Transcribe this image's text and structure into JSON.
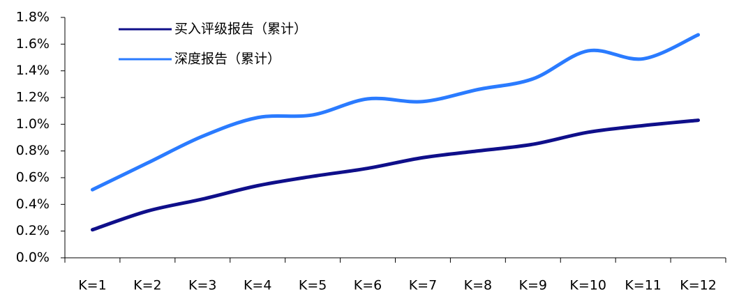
{
  "chart_data": {
    "type": "line",
    "categories": [
      "K=1",
      "K=2",
      "K=3",
      "K=4",
      "K=5",
      "K=6",
      "K=7",
      "K=8",
      "K=9",
      "K=10",
      "K=11",
      "K=12"
    ],
    "series": [
      {
        "name": "买入评级报告（累计）",
        "color": "#0f0f8a",
        "values": [
          0.21,
          0.35,
          0.44,
          0.54,
          0.61,
          0.67,
          0.75,
          0.8,
          0.85,
          0.94,
          0.99,
          1.03
        ]
      },
      {
        "name": "深度报告（累计）",
        "color": "#2a7bff",
        "values": [
          0.51,
          0.71,
          0.91,
          1.05,
          1.07,
          1.19,
          1.17,
          1.26,
          1.34,
          1.55,
          1.49,
          1.67
        ]
      }
    ],
    "ylim": [
      0,
      1.8
    ],
    "yticks": [
      {
        "value": 0,
        "label": "0.0%"
      },
      {
        "value": 0.2,
        "label": "0.2%"
      },
      {
        "value": 0.4,
        "label": "0.4%"
      },
      {
        "value": 0.6,
        "label": "0.6%"
      },
      {
        "value": 0.8,
        "label": "0.8%"
      },
      {
        "value": 1.0,
        "label": "1.0%"
      },
      {
        "value": 1.2,
        "label": "1.2%"
      },
      {
        "value": 1.4,
        "label": "1.4%"
      },
      {
        "value": 1.6,
        "label": "1.6%"
      },
      {
        "value": 1.8,
        "label": "1.8%"
      }
    ],
    "grid": false,
    "legend": "top-left"
  }
}
